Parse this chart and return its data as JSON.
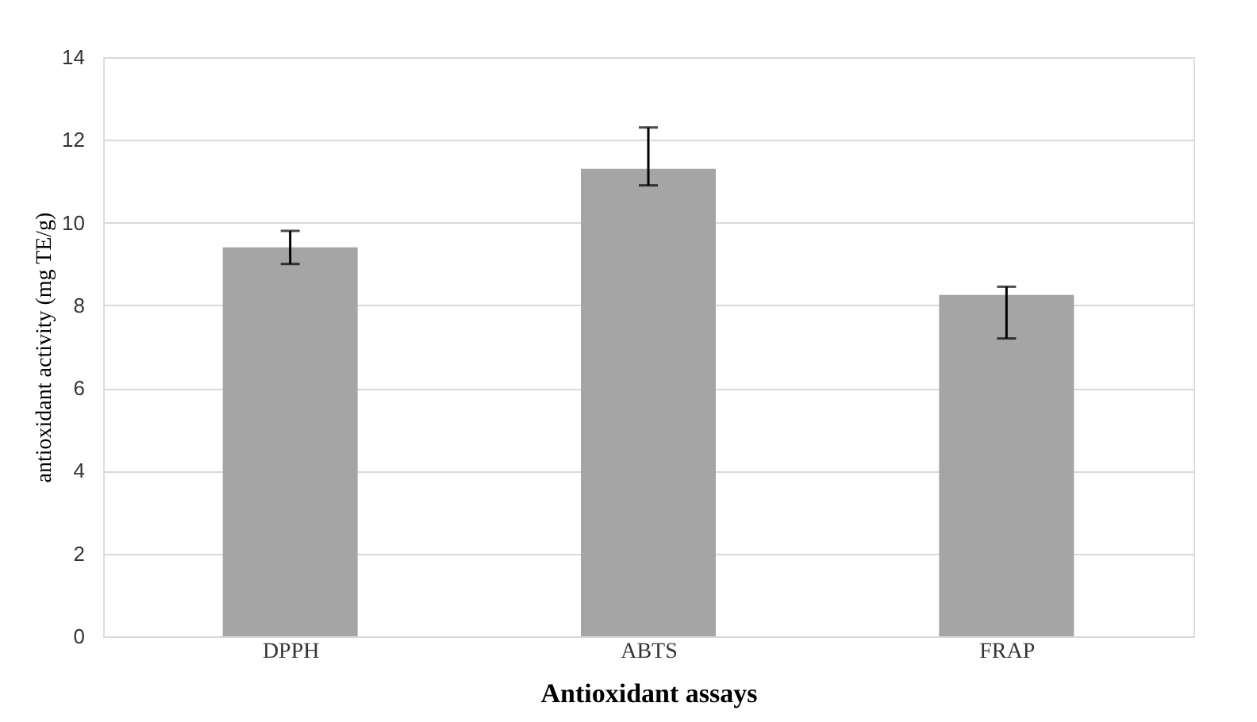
{
  "chart_data": {
    "type": "bar",
    "xlabel": "Antioxidant assays",
    "ylabel": "antioxidant activity (mg TE/g)",
    "categories": [
      "DPPH",
      "ABTS",
      "FRAP"
    ],
    "values": [
      9.4,
      11.3,
      8.25
    ],
    "errors": [
      0.4,
      [
        10.9,
        12.3
      ],
      [
        7.2,
        8.45
      ]
    ],
    "color": "#a5a5a5",
    "ylim": [
      0,
      14
    ],
    "yticks": [
      0,
      2,
      4,
      6,
      8,
      10,
      12,
      14
    ],
    "grid": "y"
  }
}
